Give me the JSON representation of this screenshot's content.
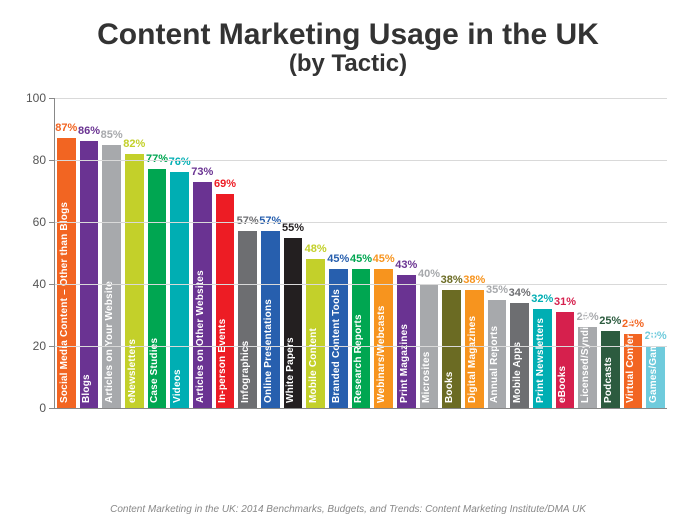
{
  "chart": {
    "type": "bar",
    "title_line1": "Content Marketing Usage in the UK",
    "title_line2": "(by Tactic)",
    "title_color": "#333333",
    "title_fontsize_line1": 30,
    "title_fontsize_line2": 24,
    "ylim": [
      0,
      100
    ],
    "ytick_step": 20,
    "grid_color": "#d9d9d9",
    "axis_color": "#888888",
    "ylabel_color": "#555555",
    "ylabel_fontsize": 12,
    "value_label_fontsize": 11,
    "category_label_fontsize": 10,
    "category_label_color": "#ffffff",
    "background_color": "#ffffff",
    "bar_width": 0.82,
    "bars": [
      {
        "label": "Social Media Content – Other than Blogs",
        "value": 87,
        "color": "#f26522"
      },
      {
        "label": "Blogs",
        "value": 86,
        "color": "#6a3392"
      },
      {
        "label": "Articles on Your Website",
        "value": 85,
        "color": "#a7a9ac"
      },
      {
        "label": "eNewsletters",
        "value": 82,
        "color": "#c3d02a"
      },
      {
        "label": "Case Studies",
        "value": 77,
        "color": "#00a651"
      },
      {
        "label": "Videos",
        "value": 76,
        "color": "#00aeb3"
      },
      {
        "label": "Articles on Other Websites",
        "value": 73,
        "color": "#6a3392"
      },
      {
        "label": "In-person Events",
        "value": 69,
        "color": "#ed1c24"
      },
      {
        "label": "Infographics",
        "value": 57,
        "color": "#6d6e71"
      },
      {
        "label": "Online Presentations",
        "value": 57,
        "color": "#275fae"
      },
      {
        "label": "White Papers",
        "value": 55,
        "color": "#231f20"
      },
      {
        "label": "Mobile Content",
        "value": 48,
        "color": "#c3d02a"
      },
      {
        "label": "Branded Content Tools",
        "value": 45,
        "color": "#275fae"
      },
      {
        "label": "Research Reports",
        "value": 45,
        "color": "#00a651"
      },
      {
        "label": "Webinars/Webcasts",
        "value": 45,
        "color": "#f7941e"
      },
      {
        "label": "Print Magazines",
        "value": 43,
        "color": "#6a3392"
      },
      {
        "label": "Microsites",
        "value": 40,
        "color": "#a7a9ac"
      },
      {
        "label": "Books",
        "value": 38,
        "color": "#6b6b23"
      },
      {
        "label": "Digital Magazines",
        "value": 38,
        "color": "#f7941e"
      },
      {
        "label": "Annual Reports",
        "value": 35,
        "color": "#a7a9ac"
      },
      {
        "label": "Mobile Apps",
        "value": 34,
        "color": "#6d6e71"
      },
      {
        "label": "Print Newsletters",
        "value": 32,
        "color": "#00aeb3"
      },
      {
        "label": "eBooks",
        "value": 31,
        "color": "#d6204d"
      },
      {
        "label": "Licensed/Syndicated Content",
        "value": 26,
        "color": "#a7a9ac"
      },
      {
        "label": "Podcasts",
        "value": 25,
        "color": "#2c5b3f"
      },
      {
        "label": "Virtual Conferences",
        "value": 24,
        "color": "#f26522"
      },
      {
        "label": "Games/Gamification",
        "value": 20,
        "color": "#6fcbdc"
      }
    ],
    "source_text": "Content Marketing in the UK: 2014 Benchmarks, Budgets, and Trends: Content Marketing Institute/DMA UK",
    "source_color": "#888888",
    "source_fontsize": 10
  }
}
